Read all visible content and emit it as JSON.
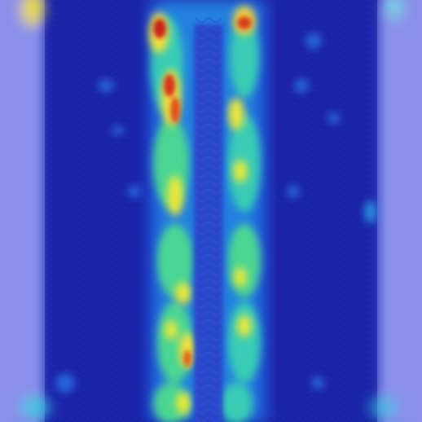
{
  "image": {
    "subject": "heatmap-overlay-on-knit-fabric-strip",
    "colors": {
      "outer_glow": "#8a90ea",
      "fabric_base": "#1c24aa",
      "cold": "#1a2bbf",
      "cool": "#2fd0e0",
      "mid": "#6ff07a",
      "warm": "#f2e13a",
      "hot": "#e23a1c"
    }
  }
}
